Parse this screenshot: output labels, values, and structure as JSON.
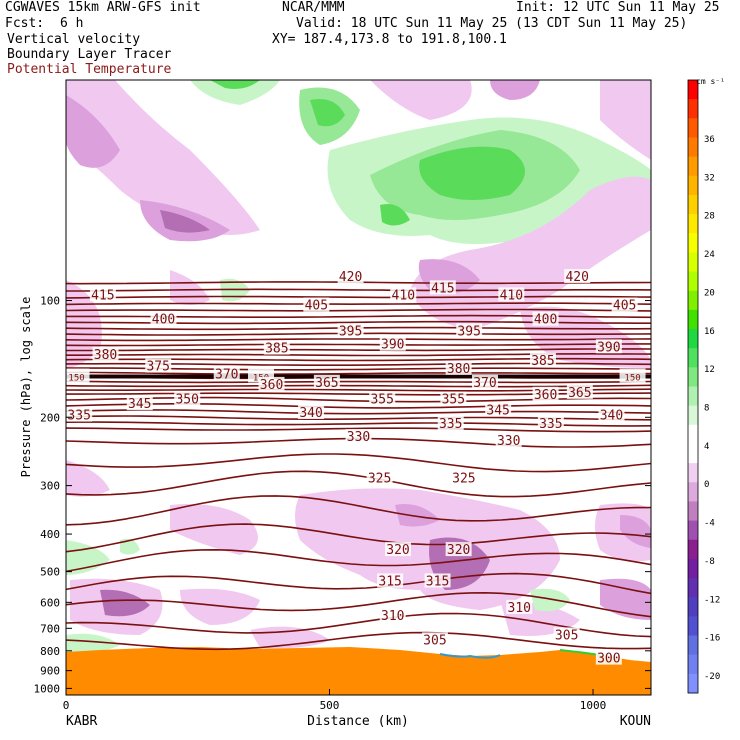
{
  "header": {
    "model": "CGWAVES 15km ARW-GFS init",
    "org": "NCAR/MMM",
    "init": "Init: 12 UTC Sun 11 May 25",
    "fcst_label": "Fcst:",
    "fcst_value": "6 h",
    "valid": "Valid: 18 UTC Sun 11 May 25 (13 CDT Sun 11 May 25)",
    "field1": "Vertical velocity",
    "field2": "Boundary Layer Tracer",
    "field3": "Potential Temperature",
    "xy": "XY= 187.4,173.8 to 191.8,100.1"
  },
  "colors": {
    "theta": "#7a1010",
    "tracer": "#ff8c00",
    "pos_light": "#c8f5c8",
    "pos_mid": "#96e896",
    "pos_strong": "#5adc5a",
    "neg_light": "#f0c8f0",
    "neg_mid": "#dca0dc",
    "neg_strong": "#b46eb4"
  },
  "chart_data": {
    "type": "cross-section",
    "xlabel": "Distance (km)",
    "ylabel": "Pressure (hPa), log scale",
    "xlim": [
      0,
      1110
    ],
    "ylim": [
      1040,
      27
    ],
    "x_ticks": [
      0,
      500,
      1000
    ],
    "y_ticks": [
      100,
      200,
      300,
      400,
      500,
      600,
      700,
      800,
      900,
      1000
    ],
    "left_station": "KABR",
    "right_station": "KOUN",
    "theta_labels": [
      {
        "t": "415",
        "x": 70,
        "p": 97
      },
      {
        "t": "420",
        "x": 540,
        "p": 87
      },
      {
        "t": "410",
        "x": 640,
        "p": 97
      },
      {
        "t": "415",
        "x": 715,
        "p": 93
      },
      {
        "t": "410",
        "x": 845,
        "p": 97
      },
      {
        "t": "420",
        "x": 970,
        "p": 87
      },
      {
        "t": "400",
        "x": 185,
        "p": 112
      },
      {
        "t": "405",
        "x": 475,
        "p": 103
      },
      {
        "t": "395",
        "x": 540,
        "p": 120
      },
      {
        "t": "395",
        "x": 765,
        "p": 120
      },
      {
        "t": "400",
        "x": 910,
        "p": 112
      },
      {
        "t": "405",
        "x": 1060,
        "p": 103
      },
      {
        "t": "380",
        "x": 75,
        "p": 138
      },
      {
        "t": "385",
        "x": 400,
        "p": 133
      },
      {
        "t": "390",
        "x": 620,
        "p": 130
      },
      {
        "t": "385",
        "x": 905,
        "p": 143
      },
      {
        "t": "390",
        "x": 1030,
        "p": 132
      },
      {
        "t": "375",
        "x": 175,
        "p": 148
      },
      {
        "t": "370",
        "x": 305,
        "p": 155
      },
      {
        "t": "380",
        "x": 745,
        "p": 150
      },
      {
        "t": "150",
        "x": 20,
        "p": 157
      },
      {
        "t": "150",
        "x": 370,
        "p": 157
      },
      {
        "t": "150",
        "x": 1075,
        "p": 157
      },
      {
        "t": "360",
        "x": 390,
        "p": 165
      },
      {
        "t": "365",
        "x": 495,
        "p": 163
      },
      {
        "t": "370",
        "x": 795,
        "p": 163
      },
      {
        "t": "365",
        "x": 975,
        "p": 173
      },
      {
        "t": "350",
        "x": 230,
        "p": 180
      },
      {
        "t": "355",
        "x": 600,
        "p": 180
      },
      {
        "t": "355",
        "x": 735,
        "p": 180
      },
      {
        "t": "360",
        "x": 910,
        "p": 175
      },
      {
        "t": "345",
        "x": 140,
        "p": 185
      },
      {
        "t": "340",
        "x": 465,
        "p": 195
      },
      {
        "t": "345",
        "x": 820,
        "p": 192
      },
      {
        "t": "340",
        "x": 1035,
        "p": 198
      },
      {
        "t": "335",
        "x": 25,
        "p": 198
      },
      {
        "t": "335",
        "x": 730,
        "p": 208
      },
      {
        "t": "335",
        "x": 920,
        "p": 208
      },
      {
        "t": "330",
        "x": 555,
        "p": 225
      },
      {
        "t": "330",
        "x": 840,
        "p": 230
      },
      {
        "t": "325",
        "x": 595,
        "p": 288
      },
      {
        "t": "325",
        "x": 755,
        "p": 288
      },
      {
        "t": "320",
        "x": 630,
        "p": 440
      },
      {
        "t": "320",
        "x": 745,
        "p": 440
      },
      {
        "t": "315",
        "x": 615,
        "p": 530
      },
      {
        "t": "315",
        "x": 705,
        "p": 530
      },
      {
        "t": "310",
        "x": 620,
        "p": 650
      },
      {
        "t": "310",
        "x": 860,
        "p": 620
      },
      {
        "t": "305",
        "x": 700,
        "p": 752
      },
      {
        "t": "305",
        "x": 950,
        "p": 730
      },
      {
        "t": "300",
        "x": 1030,
        "p": 838
      }
    ],
    "colorbar": {
      "unit": "cm s⁻¹",
      "labels": [
        "36",
        "32",
        "28",
        "24",
        "20",
        "16",
        "12",
        "8",
        "4",
        "0",
        "-4",
        "-8",
        "-12",
        "-16",
        "-20"
      ]
    }
  }
}
